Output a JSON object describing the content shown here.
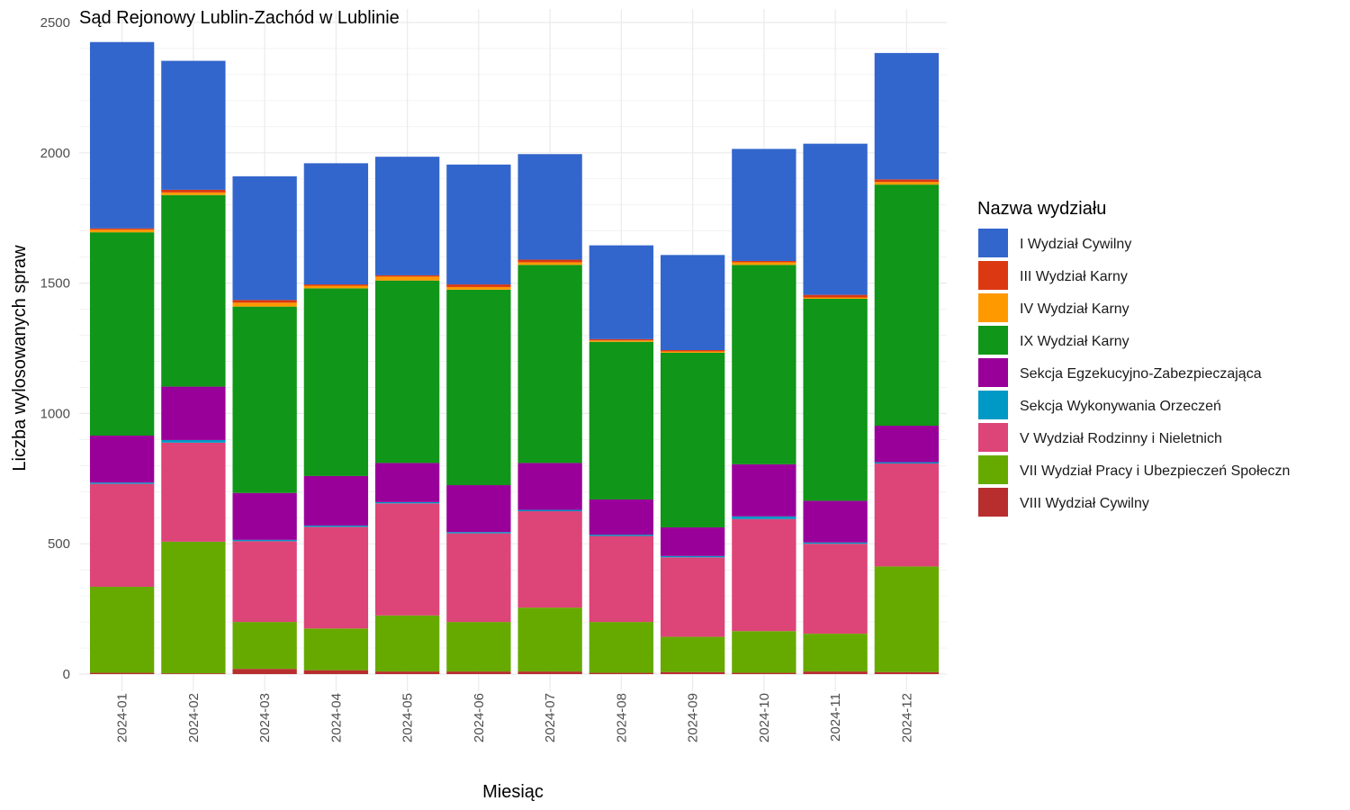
{
  "chart_data": {
    "type": "bar",
    "stacked": true,
    "title": "Sąd Rejonowy Lublin-Zachód w Lublinie",
    "xlabel": "Miesiąc",
    "ylabel": "Liczba wylosowanych spraw",
    "ylim": [
      0,
      2500
    ],
    "y_ticks": [
      0,
      500,
      1000,
      1500,
      2000,
      2500
    ],
    "grid": true,
    "legend_position": "right",
    "legend_title": "Nazwa wydziału",
    "categories": [
      "2024-01",
      "2024-02",
      "2024-03",
      "2024-04",
      "2024-05",
      "2024-06",
      "2024-07",
      "2024-08",
      "2024-09",
      "2024-10",
      "2024-11",
      "2024-12"
    ],
    "series": [
      {
        "name": "I Wydział Cywilny",
        "color": "#3366CC",
        "values": [
          715,
          495,
          475,
          465,
          455,
          460,
          405,
          360,
          365,
          430,
          580,
          485
        ]
      },
      {
        "name": "III Wydział Karny",
        "color": "#DC3912",
        "values": [
          5,
          10,
          10,
          5,
          5,
          10,
          10,
          5,
          5,
          5,
          10,
          10
        ]
      },
      {
        "name": "IV Wydział Karny",
        "color": "#FF9900",
        "values": [
          10,
          10,
          15,
          10,
          15,
          10,
          10,
          5,
          5,
          10,
          5,
          10
        ]
      },
      {
        "name": "IX Wydział Karny",
        "color": "#109618",
        "values": [
          780,
          735,
          715,
          720,
          700,
          750,
          760,
          605,
          670,
          765,
          775,
          925
        ]
      },
      {
        "name": "Sekcja Egzekucyjno-Zabezpieczająca",
        "color": "#990099",
        "values": [
          180,
          205,
          180,
          190,
          150,
          180,
          180,
          135,
          110,
          200,
          160,
          140
        ]
      },
      {
        "name": "Sekcja Wykonywania Orzeczeń",
        "color": "#0099C6",
        "values": [
          5,
          10,
          5,
          5,
          5,
          5,
          5,
          5,
          5,
          10,
          5,
          5
        ]
      },
      {
        "name": "V Wydział Rodzinny i Nieletnich",
        "color": "#DD4477",
        "values": [
          395,
          380,
          310,
          390,
          430,
          340,
          370,
          330,
          305,
          430,
          345,
          395
        ]
      },
      {
        "name": "VII Wydział Pracy i Ubezpieczeń Społeczn",
        "color": "#66AA00",
        "values": [
          330,
          505,
          180,
          160,
          215,
          190,
          245,
          195,
          135,
          160,
          145,
          405
        ]
      },
      {
        "name": "VIII Wydział Cywilny",
        "color": "#B82E2E",
        "values": [
          5,
          3,
          20,
          15,
          10,
          10,
          10,
          5,
          8,
          5,
          10,
          8
        ]
      }
    ]
  }
}
